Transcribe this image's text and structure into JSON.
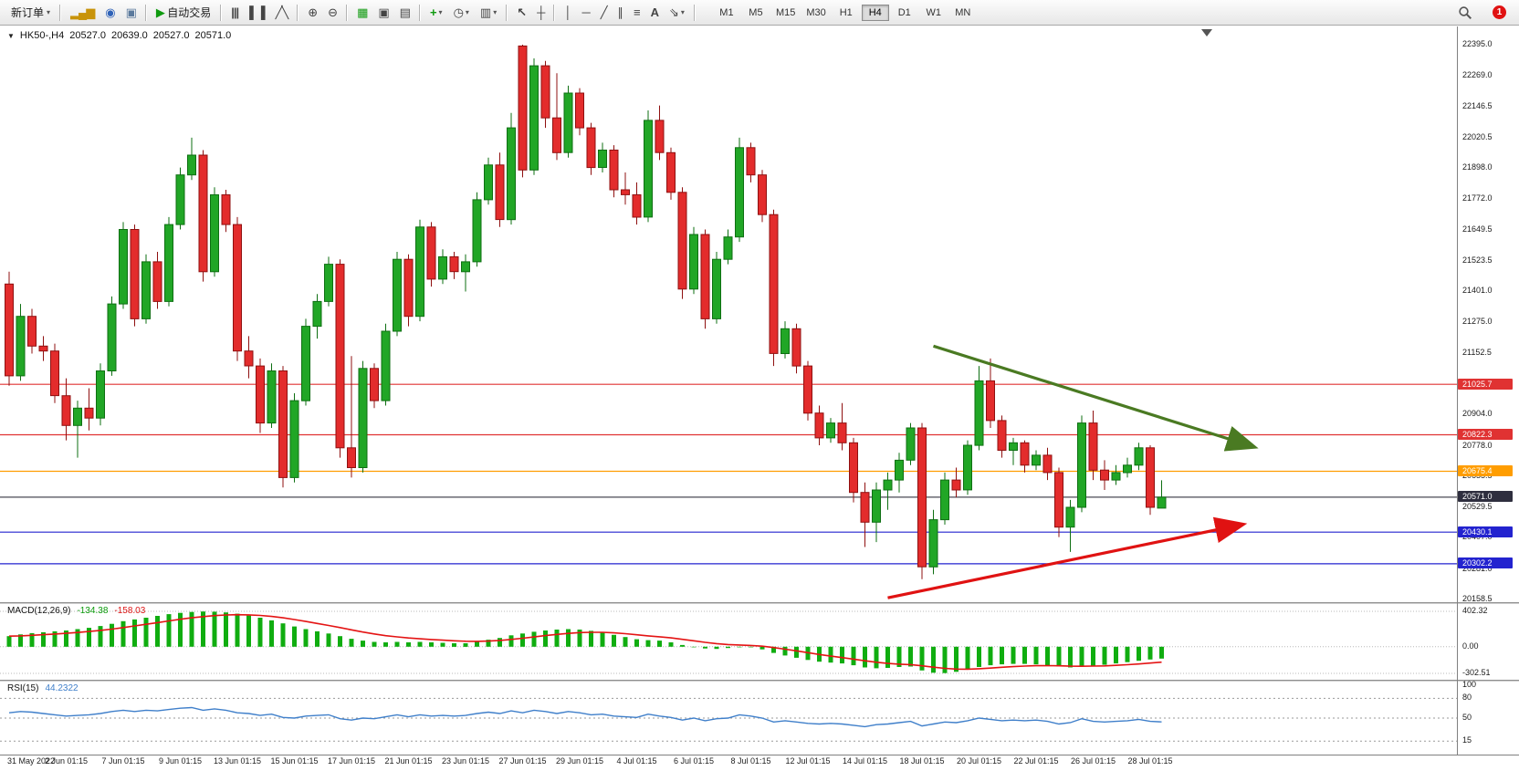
{
  "toolbar": {
    "new_order_label": "新订单",
    "autotrade_label": "自动交易",
    "notification_count": "1",
    "icons": {
      "dropdown": "▾",
      "new_chart": "▂▄▆",
      "market_watch": "◉",
      "navigator": "▣",
      "autotrade_play": "▶",
      "bars": "|||",
      "candles": "▌▐",
      "line_chart": "╱╲",
      "zoom_in": "⊕",
      "zoom_out": "⊖",
      "tile_windows": "▦",
      "cascade": "▣",
      "tile_horizontal": "▤",
      "indicators": "+",
      "periods": "◷",
      "templates": "▥",
      "cursor": "↖",
      "crosshair": "┼",
      "vline": "│",
      "hline": "─",
      "trendline": "╱",
      "channel": "∥",
      "fibonacci": "≡",
      "text": "A",
      "arrows": "⇘"
    },
    "timeframes": [
      "M1",
      "M5",
      "M15",
      "M30",
      "H1",
      "H4",
      "D1",
      "W1",
      "MN"
    ],
    "active_timeframe": "H4"
  },
  "chart": {
    "marker": "▼",
    "symbol_period": "HK50-,H4",
    "open": "20527.0",
    "high": "20639.0",
    "low": "20527.0",
    "close": "20571.0"
  },
  "colors": {
    "bull": "#21a626",
    "bull_stroke": "#0e6f12",
    "bear": "#e32c2c",
    "bear_stroke": "#8f1010",
    "macd_hist": "#10ad10",
    "macd_signal": "#e41414",
    "rsi_line": "#3f7fca"
  },
  "chart_data": [
    {
      "type": "candlestick",
      "symbol": "HK50-",
      "timeframe": "H4",
      "title": "HK50-,H4",
      "ohlc": {
        "open": 20527.0,
        "high": 20639.0,
        "low": 20527.0,
        "close": 20571.0
      },
      "ylim": [
        20158.5,
        22395.0
      ],
      "y_axis_ticks": [
        22395.0,
        22269.0,
        22146.5,
        22020.5,
        21898.0,
        21772.0,
        21649.5,
        21523.5,
        21401.0,
        21275.0,
        21152.5,
        20904.0,
        20778.0,
        20655.5,
        20529.5,
        20407.0,
        20281.0,
        20158.5
      ],
      "levels": [
        {
          "price": 21025.7,
          "color": "#e03232",
          "tag_bg": "#e03232"
        },
        {
          "price": 20822.3,
          "color": "#e03232",
          "tag_bg": "#e03232"
        },
        {
          "price": 20675.4,
          "color": "#ff9d00",
          "tag_bg": "#ff9d00"
        },
        {
          "price": 20571.0,
          "color": "#4a4a55",
          "tag_bg": "#2e2e3e"
        },
        {
          "price": 20430.1,
          "color": "#2323cf",
          "tag_bg": "#2323cf"
        },
        {
          "price": 20302.2,
          "color": "#2323cf",
          "tag_bg": "#2323cf"
        }
      ],
      "x_labels": [
        "31 May 2022",
        "2 Jun 01:15",
        "7 Jun 01:15",
        "9 Jun 01:15",
        "13 Jun 01:15",
        "15 Jun 01:15",
        "17 Jun 01:15",
        "21 Jun 01:15",
        "23 Jun 01:15",
        "27 Jun 01:15",
        "29 Jun 01:15",
        "4 Jul 01:15",
        "6 Jul 01:15",
        "8 Jul 01:15",
        "12 Jul 01:15",
        "14 Jul 01:15",
        "18 Jul 01:15",
        "20 Jul 01:15",
        "22 Jul 01:15",
        "26 Jul 01:15",
        "28 Jul 01:15"
      ],
      "label_step": 5,
      "candles": [
        [
          21430,
          21480,
          21020,
          21060
        ],
        [
          21060,
          21350,
          21040,
          21300
        ],
        [
          21300,
          21330,
          21150,
          21180
        ],
        [
          21180,
          21220,
          21120,
          21160
        ],
        [
          21160,
          21190,
          20950,
          20980
        ],
        [
          20980,
          21050,
          20800,
          20860
        ],
        [
          20860,
          20960,
          20730,
          20930
        ],
        [
          20930,
          21010,
          20840,
          20890
        ],
        [
          20890,
          21110,
          20860,
          21080
        ],
        [
          21080,
          21380,
          21060,
          21350
        ],
        [
          21350,
          21680,
          21330,
          21650
        ],
        [
          21650,
          21670,
          21260,
          21290
        ],
        [
          21290,
          21550,
          21270,
          21520
        ],
        [
          21520,
          21560,
          21330,
          21360
        ],
        [
          21360,
          21700,
          21340,
          21670
        ],
        [
          21670,
          21900,
          21650,
          21870
        ],
        [
          21870,
          22020,
          21850,
          21950
        ],
        [
          21950,
          21970,
          21440,
          21480
        ],
        [
          21480,
          21820,
          21460,
          21790
        ],
        [
          21790,
          21810,
          21640,
          21670
        ],
        [
          21670,
          21700,
          21120,
          21160
        ],
        [
          21160,
          21220,
          21050,
          21100
        ],
        [
          21100,
          21130,
          20830,
          20870
        ],
        [
          20870,
          21110,
          20850,
          21080
        ],
        [
          21080,
          21100,
          20610,
          20650
        ],
        [
          20650,
          20990,
          20630,
          20960
        ],
        [
          20960,
          21290,
          20940,
          21260
        ],
        [
          21260,
          21390,
          21210,
          21360
        ],
        [
          21360,
          21540,
          21340,
          21510
        ],
        [
          21510,
          21530,
          20730,
          20770
        ],
        [
          20770,
          21140,
          20650,
          20690
        ],
        [
          20690,
          21120,
          20670,
          21090
        ],
        [
          21090,
          21110,
          20930,
          20960
        ],
        [
          20960,
          21270,
          20940,
          21240
        ],
        [
          21240,
          21560,
          21220,
          21530
        ],
        [
          21530,
          21550,
          21260,
          21300
        ],
        [
          21300,
          21690,
          21280,
          21660
        ],
        [
          21660,
          21680,
          21420,
          21450
        ],
        [
          21450,
          21570,
          21430,
          21540
        ],
        [
          21540,
          21560,
          21450,
          21480
        ],
        [
          21480,
          21550,
          21400,
          21520
        ],
        [
          21520,
          21800,
          21500,
          21770
        ],
        [
          21770,
          21940,
          21750,
          21910
        ],
        [
          21910,
          21960,
          21660,
          21690
        ],
        [
          21690,
          22120,
          21670,
          22060
        ],
        [
          22390,
          22395,
          21860,
          21890
        ],
        [
          21890,
          22340,
          21870,
          22310
        ],
        [
          22310,
          22330,
          22060,
          22100
        ],
        [
          22100,
          22280,
          21930,
          21960
        ],
        [
          21960,
          22230,
          21940,
          22200
        ],
        [
          22200,
          22220,
          22030,
          22060
        ],
        [
          22060,
          22080,
          21870,
          21900
        ],
        [
          21900,
          22000,
          21880,
          21970
        ],
        [
          21970,
          21990,
          21780,
          21810
        ],
        [
          21810,
          21880,
          21750,
          21790
        ],
        [
          21790,
          21840,
          21670,
          21700
        ],
        [
          21700,
          22130,
          21680,
          22090
        ],
        [
          22090,
          22150,
          21930,
          21960
        ],
        [
          21960,
          21980,
          21770,
          21800
        ],
        [
          21800,
          21820,
          21370,
          21410
        ],
        [
          21410,
          21660,
          21390,
          21630
        ],
        [
          21630,
          21650,
          21250,
          21290
        ],
        [
          21290,
          21560,
          21270,
          21530
        ],
        [
          21530,
          21650,
          21510,
          21620
        ],
        [
          21620,
          22020,
          21600,
          21980
        ],
        [
          21980,
          22000,
          21840,
          21870
        ],
        [
          21870,
          21890,
          21680,
          21710
        ],
        [
          21710,
          21730,
          21100,
          21150
        ],
        [
          21150,
          21280,
          21130,
          21250
        ],
        [
          21250,
          21270,
          21070,
          21100
        ],
        [
          21100,
          21120,
          20880,
          20910
        ],
        [
          20910,
          20940,
          20780,
          20810
        ],
        [
          20810,
          20890,
          20790,
          20870
        ],
        [
          20870,
          20950,
          20760,
          20790
        ],
        [
          20790,
          20810,
          20550,
          20590
        ],
        [
          20590,
          20630,
          20370,
          20470
        ],
        [
          20470,
          20630,
          20390,
          20600
        ],
        [
          20600,
          20670,
          20520,
          20640
        ],
        [
          20640,
          20750,
          20590,
          20720
        ],
        [
          20720,
          20870,
          20700,
          20850
        ],
        [
          20850,
          20870,
          20240,
          20290
        ],
        [
          20290,
          20520,
          20260,
          20480
        ],
        [
          20480,
          20670,
          20460,
          20640
        ],
        [
          20640,
          20690,
          20570,
          20600
        ],
        [
          20600,
          20800,
          20580,
          20780
        ],
        [
          20780,
          21100,
          20760,
          21040
        ],
        [
          21040,
          21130,
          20850,
          20880
        ],
        [
          20880,
          20900,
          20730,
          20760
        ],
        [
          20760,
          20810,
          20700,
          20790
        ],
        [
          20790,
          20800,
          20670,
          20700
        ],
        [
          20700,
          20760,
          20680,
          20740
        ],
        [
          20740,
          20770,
          20640,
          20670
        ],
        [
          20670,
          20690,
          20410,
          20450
        ],
        [
          20450,
          20560,
          20350,
          20530
        ],
        [
          20530,
          20900,
          20510,
          20870
        ],
        [
          20870,
          20920,
          20640,
          20680
        ],
        [
          20680,
          20720,
          20600,
          20640
        ],
        [
          20640,
          20700,
          20620,
          20670
        ],
        [
          20670,
          20730,
          20650,
          20700
        ],
        [
          20700,
          20790,
          20680,
          20770
        ],
        [
          20770,
          20780,
          20500,
          20530
        ],
        [
          20527,
          20639,
          20527,
          20571
        ]
      ],
      "trend_arrows": [
        {
          "name": "downtrend-arrow",
          "color": "#4a7a22",
          "from": [
            81,
            21180
          ],
          "to": [
            109,
            20775
          ]
        },
        {
          "name": "uptrend-arrow",
          "color": "#e01212",
          "from": [
            77,
            20165
          ],
          "to": [
            108,
            20460
          ]
        }
      ]
    },
    {
      "type": "macd",
      "label": "MACD(12,26,9)",
      "main_value_text": "-134.38",
      "signal_value_text": "-158.03",
      "axis_max": 402.32,
      "axis_min": -302.51,
      "axis_labels": [
        {
          "text": "402.32",
          "value": 402.32
        },
        {
          "text": "0.00",
          "value": 0
        },
        {
          "text": "-302.51",
          "value": -302.51
        }
      ],
      "histogram": [
        120,
        140,
        155,
        165,
        175,
        185,
        200,
        215,
        235,
        260,
        290,
        310,
        330,
        350,
        370,
        385,
        395,
        400,
        398,
        390,
        375,
        355,
        330,
        300,
        265,
        230,
        200,
        175,
        150,
        120,
        90,
        70,
        55,
        50,
        55,
        50,
        55,
        50,
        45,
        40,
        40,
        55,
        80,
        100,
        130,
        150,
        170,
        185,
        195,
        200,
        195,
        180,
        160,
        135,
        110,
        85,
        75,
        70,
        50,
        20,
        0,
        -20,
        -25,
        -15,
        0,
        -5,
        -30,
        -70,
        -100,
        -125,
        -150,
        -170,
        -180,
        -190,
        -210,
        -235,
        -245,
        -240,
        -230,
        -225,
        -270,
        -295,
        -300,
        -285,
        -260,
        -230,
        -210,
        -200,
        -195,
        -195,
        -200,
        -210,
        -225,
        -235,
        -225,
        -215,
        -205,
        -190,
        -175,
        -160,
        -145,
        -134.38
      ]
    },
    {
      "type": "rsi",
      "label": "RSI(15)",
      "value_text": "44.2322",
      "levels": [
        {
          "text": "100",
          "value": 100,
          "dashed": false
        },
        {
          "text": "80",
          "value": 80,
          "dashed": true
        },
        {
          "text": "50",
          "value": 50,
          "dashed": true
        },
        {
          "text": "15",
          "value": 15,
          "dashed": true
        }
      ],
      "line": [
        58,
        60,
        59,
        57,
        55,
        53,
        54,
        55,
        57,
        60,
        62,
        60,
        62,
        61,
        63,
        65,
        66,
        62,
        64,
        62,
        58,
        57,
        54,
        56,
        51,
        50,
        53,
        54,
        55,
        49,
        47,
        50,
        49,
        52,
        55,
        52,
        55,
        53,
        54,
        53,
        54,
        57,
        59,
        57,
        61,
        58,
        62,
        60,
        57,
        60,
        58,
        55,
        56,
        53,
        52,
        51,
        56,
        53,
        51,
        47,
        50,
        46,
        49,
        50,
        55,
        53,
        50,
        44,
        46,
        44,
        42,
        41,
        42,
        41,
        39,
        37,
        40,
        41,
        43,
        45,
        38,
        41,
        44,
        43,
        46,
        50,
        48,
        46,
        47,
        46,
        47,
        45,
        41,
        43,
        49,
        45,
        44,
        45,
        46,
        48,
        45,
        44.23
      ]
    }
  ]
}
